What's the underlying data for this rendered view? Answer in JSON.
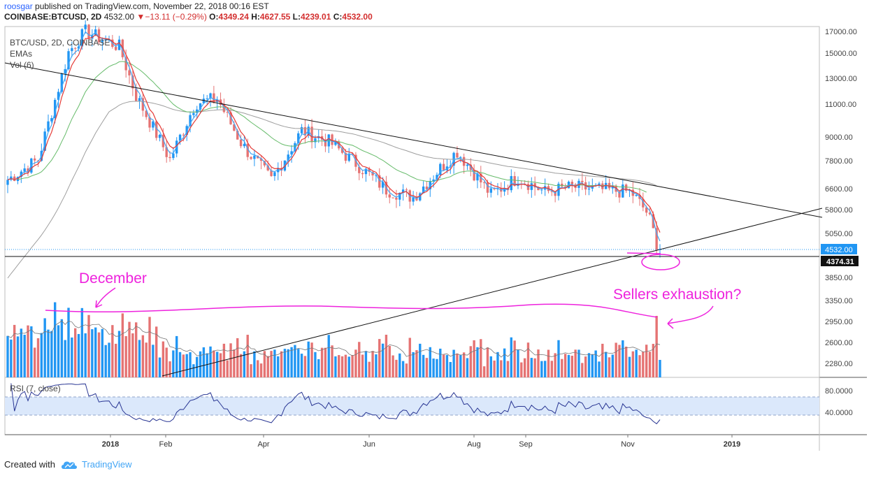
{
  "header": {
    "author": "roosgar",
    "published": "published on TradingView.com, November 22, 2018 00:16 EST",
    "symbol": "COINBASE:BTCUSD, 2D",
    "price": "4532.00",
    "change": "−13.11 (−0.29%)",
    "ohlc": {
      "o_label": "O:",
      "o": "4349.24",
      "h_label": "H:",
      "h": "4627.55",
      "l_label": "L:",
      "l": "4239.01",
      "c_label": "C:",
      "c": "4532.00"
    }
  },
  "legend": {
    "symbol": "BTC/USD, 2D, COINBASE",
    "emas": "EMAs",
    "vol": "Vol (6)",
    "rsi": "RSI (7, close)"
  },
  "price_axis": {
    "ticks": [
      "17000.00",
      "15000.00",
      "13000.00",
      "11000.00",
      "9000.00",
      "7800.00",
      "6600.00",
      "5800.00",
      "5050.00",
      "3850.00",
      "3350.00",
      "2950.00",
      "2600.00",
      "2280.00"
    ],
    "last_price": "4532.00",
    "crosshair_price": "4374.31"
  },
  "rsi_axis": {
    "ticks": [
      "80.0000",
      "40.0000"
    ],
    "band": [
      30,
      70
    ]
  },
  "time_axis": {
    "labels": [
      "2018",
      "Feb",
      "Apr",
      "Jun",
      "Aug",
      "Sep",
      "Nov",
      "2019"
    ]
  },
  "annotations": {
    "december": "December",
    "sellers": "Sellers exhaustion?"
  },
  "footer": {
    "created": "Created with",
    "brand": "TradingView"
  },
  "colors": {
    "up": "#2196f3",
    "down": "#e57373",
    "ema_fast": "#e53935",
    "ema_mid": "#42a5f5",
    "ema_slow_green": "#66bb6a",
    "ema_slow_gray": "#9e9e9e",
    "rsi": "#283593",
    "rsi_band": "#dbe8fb",
    "annotation": "#ee22dd",
    "last_price": "#2196f3"
  },
  "chart_data": {
    "type": "candlestick",
    "title": "BTC/USD, 2D, COINBASE",
    "x": [
      "2017-11-01",
      "2017-11-19",
      "2017-12-07",
      "2017-12-17",
      "2018-01-06",
      "2018-01-16",
      "2018-02-05",
      "2018-02-20",
      "2018-03-05",
      "2018-03-20",
      "2018-04-06",
      "2018-04-24",
      "2018-05-10",
      "2018-05-28",
      "2018-06-13",
      "2018-06-29",
      "2018-07-15",
      "2018-07-25",
      "2018-08-14",
      "2018-08-30",
      "2018-09-15",
      "2018-10-01",
      "2018-10-17",
      "2018-11-05",
      "2018-11-15",
      "2018-11-21"
    ],
    "close": [
      6900,
      7800,
      15000,
      17000,
      15500,
      11500,
      7800,
      11000,
      11300,
      8500,
      6900,
      9300,
      8700,
      7500,
      6500,
      6200,
      7400,
      8200,
      6300,
      7000,
      6400,
      6600,
      6500,
      6400,
      5600,
      4532
    ],
    "ema_slow_end": 8450,
    "rsi_end": 20,
    "trendlines": [
      {
        "from": [
          "2017-11-01",
          14300
        ],
        "to": [
          "2019-02-10",
          5500
        ]
      },
      {
        "from": [
          "2018-01-25",
          1150
        ],
        "to": [
          "2019-02-10",
          5900
        ]
      }
    ]
  }
}
